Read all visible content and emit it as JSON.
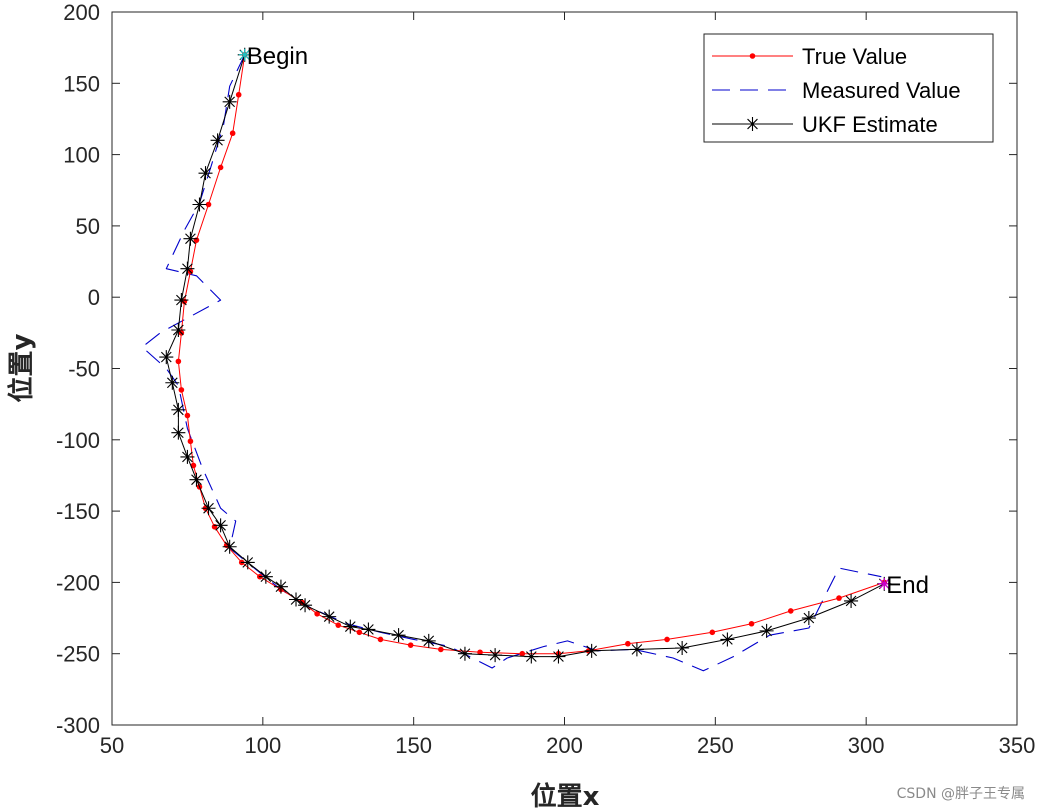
{
  "chart_data": {
    "type": "line",
    "title": "",
    "xlabel": "位置x",
    "ylabel": "位置y",
    "xlim": [
      50,
      350
    ],
    "ylim": [
      -300,
      200
    ],
    "xticks": [
      50,
      100,
      150,
      200,
      250,
      300,
      350
    ],
    "yticks": [
      -300,
      -250,
      -200,
      -150,
      -100,
      -50,
      0,
      50,
      100,
      150,
      200
    ],
    "xtick_labels": [
      "50",
      "100",
      "150",
      "200",
      "250",
      "300",
      "350"
    ],
    "ytick_labels": [
      "-300",
      "-250",
      "-200",
      "-150",
      "-100",
      "-50",
      "0",
      "50",
      "100",
      "150",
      "200"
    ],
    "grid": false,
    "legend_position": "top-right",
    "series": [
      {
        "name": "True Value",
        "color": "#ff0000",
        "style": "solid-dot",
        "x": [
          94,
          92,
          90,
          86,
          82,
          78,
          76,
          74,
          73,
          72,
          73,
          75,
          76,
          77,
          79,
          81,
          84,
          88,
          93,
          99,
          106,
          113,
          118,
          125,
          132,
          139,
          149,
          159,
          172,
          186,
          198,
          208,
          221,
          234,
          249,
          262,
          275,
          291,
          306
        ],
        "y": [
          170,
          142,
          115,
          91,
          65,
          40,
          18,
          -3,
          -25,
          -45,
          -65,
          -83,
          -101,
          -118,
          -133,
          -148,
          -161,
          -174,
          -186,
          -196,
          -205,
          -214,
          -222,
          -230,
          -235,
          -240,
          -244,
          -247,
          -249,
          -250,
          -250,
          -248,
          -243,
          -240,
          -235,
          -229,
          -220,
          -211,
          -200
        ]
      },
      {
        "name": "Measured Value",
        "color": "#0000cc",
        "style": "dashed",
        "x": [
          94,
          89,
          87,
          83,
          79,
          74,
          68,
          78,
          86,
          66,
          60,
          68,
          72,
          75,
          80,
          86,
          91,
          89,
          96,
          106,
          116,
          128,
          139,
          150,
          162,
          176,
          181,
          193,
          201,
          211,
          223,
          236,
          246,
          256,
          268,
          281,
          291,
          305
        ],
        "y": [
          170,
          148,
          121,
          93,
          66,
          47,
          20,
          15,
          -2,
          -25,
          -35,
          -50,
          -62,
          -92,
          -120,
          -148,
          -157,
          -176,
          -188,
          -205,
          -218,
          -229,
          -235,
          -240,
          -245,
          -260,
          -253,
          -245,
          -241,
          -248,
          -247,
          -253,
          -262,
          -252,
          -237,
          -232,
          -190,
          -196
        ]
      },
      {
        "name": "UKF Estimate",
        "color": "#000000",
        "style": "solid-star",
        "x": [
          94,
          89,
          85,
          81,
          79,
          76,
          75,
          73,
          72,
          68,
          70,
          72,
          72,
          75,
          78,
          82,
          86,
          89,
          95,
          101,
          106,
          111,
          114,
          122,
          129,
          135,
          145,
          155,
          167,
          177,
          189,
          198,
          209,
          224,
          239,
          254,
          267,
          281,
          295,
          306
        ],
        "y": [
          170,
          137,
          110,
          87,
          65,
          41,
          20,
          -2,
          -23,
          -42,
          -60,
          -79,
          -95,
          -112,
          -128,
          -148,
          -160,
          -175,
          -186,
          -196,
          -203,
          -212,
          -216,
          -224,
          -231,
          -233,
          -237,
          -241,
          -250,
          -251,
          -252,
          -252,
          -248,
          -247,
          -246,
          -240,
          -234,
          -225,
          -213,
          -201
        ]
      }
    ],
    "annotations": [
      {
        "text": "Begin",
        "x": 94,
        "y": 170,
        "marker_color": "#20c0c0"
      },
      {
        "text": "End",
        "x": 306,
        "y": -201,
        "marker_color": "#cc00cc"
      }
    ]
  },
  "watermark": "CSDN @胖子王专属"
}
